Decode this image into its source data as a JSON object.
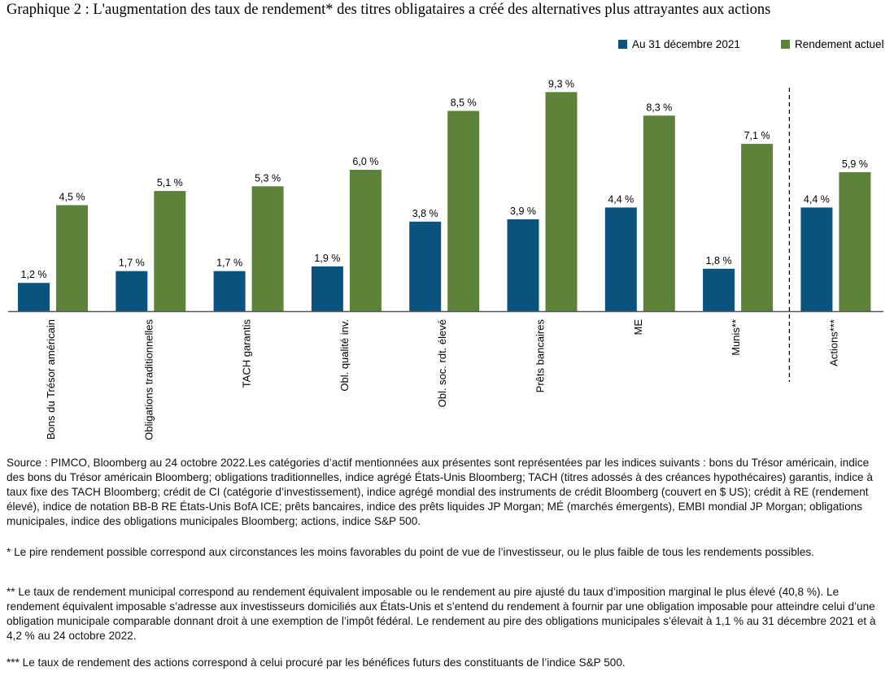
{
  "title": "Graphique 2 : L'augmentation des taux de rendement* des titres obligataires a créé des alternatives plus attrayantes aux actions",
  "colors": {
    "series1": "#0b537f",
    "series2": "#5d8239",
    "axis": "#555555"
  },
  "chart_data": {
    "type": "bar",
    "categories": [
      "Bons du Trésor américain",
      "Obligations traditionnelles",
      "TACH garantis",
      "Obl. qualité inv.",
      "Obl. soc. rdt. élevé",
      "Prêts bancaires",
      "ME",
      "Munis**",
      "Actions***"
    ],
    "series": [
      {
        "name": "Au 31 décembre 2021",
        "values": [
          1.2,
          1.7,
          1.7,
          1.9,
          3.8,
          3.9,
          4.4,
          1.8,
          4.4
        ],
        "labels": [
          "1,2 %",
          "1,7 %",
          "1,7 %",
          "1,9 %",
          "3,8 %",
          "3,9 %",
          "4,4 %",
          "1,8 %",
          "4,4 %"
        ]
      },
      {
        "name": "Rendement actuel",
        "values": [
          4.5,
          5.1,
          5.3,
          6.0,
          8.5,
          9.3,
          8.3,
          7.1,
          5.9
        ],
        "labels": [
          "4,5 %",
          "5,1 %",
          "5,3 %",
          "6,0 %",
          "8,5 %",
          "9,3 %",
          "8,3 %",
          "7,1 %",
          "5,9 %"
        ]
      }
    ],
    "ylim": [
      0,
      10
    ],
    "grid": false,
    "legend": "top-right",
    "separator": "dashed line before Actions***"
  },
  "notes": {
    "source": "Source : PIMCO, Bloomberg au 24 octobre 2022.Les catégories d’actif mentionnées aux présentes sont représentées par les indices suivants : bons du Trésor américain, indice des bons du Trésor américain Bloomberg; obligations traditionnelles, indice agrégé États-Unis Bloomberg; TACH (titres adossés à des créances hypothécaires) garantis, indice à taux fixe des TACH Bloomberg; crédit de CI (catégorie d’investissement), indice agrégé mondial des instruments de crédit Bloomberg (couvert en $ US); crédit à RE (rendement élevé), indice de notation BB-B RE États-Unis BofA ICE; prêts bancaires, indice des prêts liquides JP Morgan; MÉ (marchés émergents), EMBI mondial JP Morgan; obligations municipales, indice des obligations municipales Bloomberg; actions, indice S&P 500.",
    "footnote1": "* Le pire rendement possible correspond aux circonstances les moins favorables du point de vue de l’investisseur, ou le plus faible de tous les rendements possibles.",
    "footnote2": "** Le taux de rendement municipal correspond au rendement équivalent imposable ou le rendement au pire ajusté du taux d’imposition marginal le plus élevé (40,8 %). Le rendement équivalent imposable s’adresse aux investisseurs domiciliés aux États-Unis et s’entend du rendement à fournir par une obligation imposable pour atteindre celui d’une obligation municipale comparable donnant droit à une exemption de l’impôt fédéral. Le rendement au pire des obligations municipales s’élevait à 1,1 % au 31 décembre 2021 et à 4,2 % au 24 octobre 2022.",
    "footnote3": "*** Le taux de rendement des actions correspond à celui procuré par les bénéfices futurs des constituants de l’indice S&P 500."
  }
}
